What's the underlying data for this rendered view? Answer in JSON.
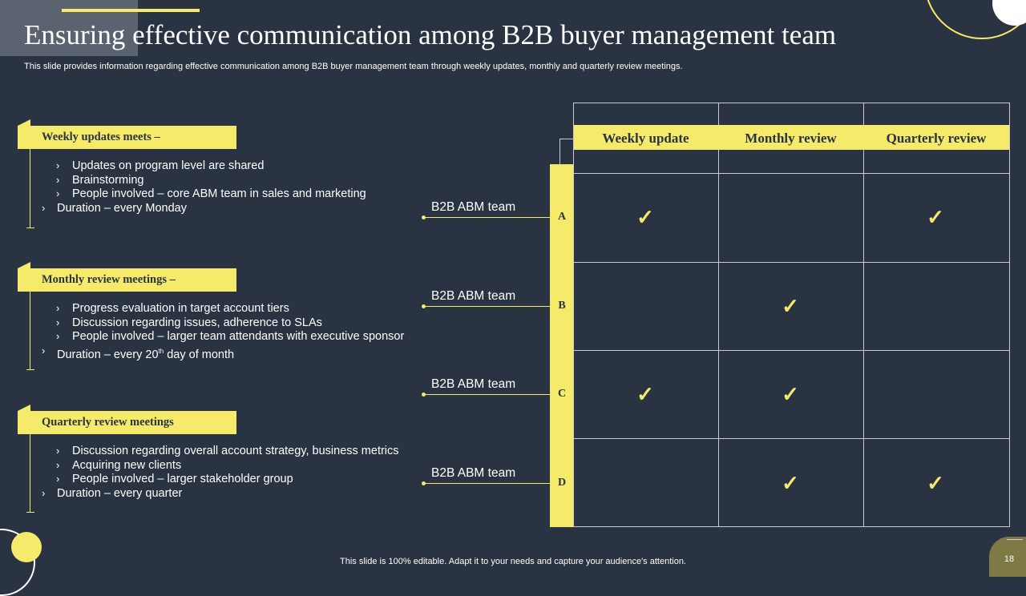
{
  "title": "Ensuring effective communication among B2B buyer management team",
  "subtitle": "This slide provides information regarding effective communication among B2B buyer management team through weekly updates, monthly and quarterly review meetings.",
  "sections": [
    {
      "heading": "Weekly updates meets –",
      "items": [
        "Updates on program level are shared",
        "Brainstorming",
        "People involved – core ABM team in sales and marketing"
      ],
      "duration": "Duration – every Monday"
    },
    {
      "heading": "Monthly review meetings –",
      "items": [
        "Progress evaluation  in target account tiers",
        "Discussion regarding issues, adherence to SLAs",
        "People involved – larger team attendants with executive sponsor"
      ],
      "duration_prefix": "Duration – every 20",
      "duration_sup": "th",
      "duration_suffix": " day of month"
    },
    {
      "heading": "Quarterly  review meetings",
      "items": [
        "Discussion regarding overall account strategy, business  metrics",
        "Acquiring new clients",
        "People involved – larger stakeholder group"
      ],
      "duration": "Duration – every quarter"
    }
  ],
  "teams": [
    {
      "label": "B2B ABM team",
      "letter": "A",
      "checks": [
        true,
        false,
        true
      ]
    },
    {
      "label": "B2B ABM team",
      "letter": "B",
      "checks": [
        false,
        true,
        false
      ]
    },
    {
      "label": "B2B ABM team",
      "letter": "C",
      "checks": [
        true,
        true,
        false
      ]
    },
    {
      "label": "B2B ABM team",
      "letter": "D",
      "checks": [
        false,
        true,
        true
      ]
    }
  ],
  "columns": [
    "Weekly update",
    "Monthly review",
    "Quarterly review"
  ],
  "check_mark": "✓",
  "footer": "This slide is 100% editable. Adapt it to your needs and capture your audience's attention.",
  "page_number": "18",
  "colors": {
    "background": "#2a3342",
    "accent": "#f5ea6a",
    "grid": "#c9ccd2"
  }
}
